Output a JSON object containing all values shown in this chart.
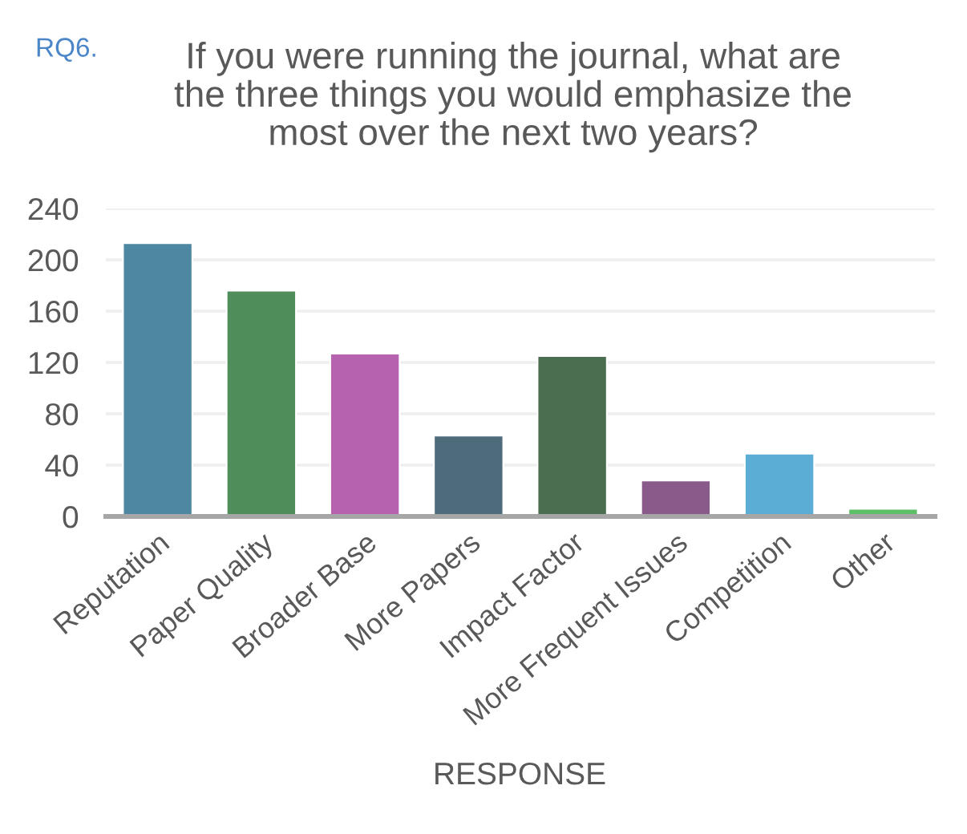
{
  "chart_data": {
    "type": "bar",
    "title": "If you were running the journal, what are\nthe three things you would emphasize the\nmost over the next two years?",
    "annotations": [
      "RQ6."
    ],
    "xlabel": "RESPONSE",
    "categories": [
      "Reputation",
      "Paper Quality",
      "Broader Base",
      "More Papers",
      "Impact Factor",
      "More Frequent Issues",
      "Competition",
      "Other"
    ],
    "values": [
      213,
      176,
      127,
      63,
      125,
      28,
      49,
      6
    ],
    "colors": [
      "#4e87a2",
      "#4f8d5a",
      "#b662ae",
      "#4d6b7b",
      "#4c6e50",
      "#8a5a8b",
      "#5badd5",
      "#5cbf66"
    ],
    "ylim": [
      0,
      240
    ],
    "yticks": [
      0,
      40,
      80,
      120,
      160,
      200,
      240
    ],
    "grid": "y",
    "legend": false
  }
}
